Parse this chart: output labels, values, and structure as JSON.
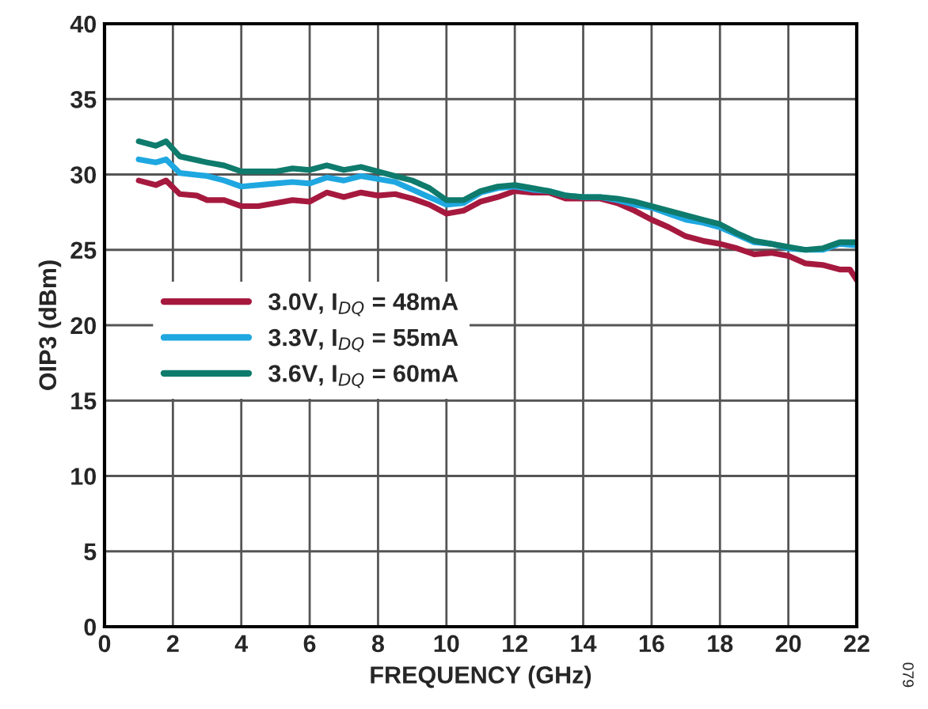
{
  "chart_data": {
    "type": "line",
    "xlabel": "FREQUENCY (GHz)",
    "ylabel": "OIP3 (dBm)",
    "xlim": [
      0,
      22
    ],
    "xticks": [
      0,
      2,
      4,
      6,
      8,
      10,
      12,
      14,
      16,
      18,
      20,
      22
    ],
    "ylim": [
      0,
      40
    ],
    "yticks": [
      0,
      5,
      10,
      15,
      20,
      25,
      30,
      35,
      40
    ],
    "grid": true,
    "legend": "center left",
    "line_style": "solid",
    "marker": "none",
    "annotations": [
      "079"
    ],
    "series": [
      {
        "name": "3.0V, I$_{DQ}$ = 48mA",
        "color": "#a6193f",
        "x": [
          1,
          1.5,
          1.8,
          2.2,
          2.7,
          3,
          3.5,
          4,
          4.5,
          5,
          5.5,
          6,
          6.5,
          7,
          7.5,
          8,
          8.5,
          9,
          9.5,
          10,
          10.5,
          11,
          11.5,
          12,
          12.5,
          13,
          13.5,
          14,
          14.5,
          15,
          15.5,
          16,
          16.5,
          17,
          17.5,
          18,
          18.5,
          19,
          19.5,
          20,
          20.5,
          21,
          21.5,
          21.8,
          22
        ],
        "values": [
          29.6,
          29.3,
          29.6,
          28.7,
          28.6,
          28.3,
          28.3,
          27.9,
          27.9,
          28.1,
          28.3,
          28.2,
          28.8,
          28.5,
          28.8,
          28.6,
          28.7,
          28.4,
          28.0,
          27.4,
          27.6,
          28.2,
          28.5,
          28.9,
          28.8,
          28.8,
          28.4,
          28.4,
          28.4,
          28.1,
          27.6,
          27.0,
          26.5,
          25.9,
          25.6,
          25.4,
          25.1,
          24.7,
          24.8,
          24.6,
          24.1,
          24.0,
          23.7,
          23.7,
          23.0
        ]
      },
      {
        "name": "3.3V, I$_{DQ}$ = 55mA",
        "color": "#1ea7e0",
        "x": [
          1,
          1.5,
          1.8,
          2.2,
          3,
          3.5,
          4,
          5,
          5.5,
          6,
          6.5,
          7,
          7.5,
          8,
          8.5,
          9,
          9.5,
          10,
          10.5,
          11,
          11.5,
          12,
          12.5,
          13,
          13.5,
          14,
          14.5,
          15,
          15.5,
          16,
          16.5,
          17,
          17.5,
          18,
          18.5,
          19,
          19.5,
          20,
          20.5,
          21,
          21.5,
          22
        ],
        "values": [
          31.0,
          30.8,
          31.0,
          30.1,
          29.9,
          29.6,
          29.2,
          29.4,
          29.5,
          29.4,
          29.8,
          29.6,
          29.9,
          29.7,
          29.5,
          29.0,
          28.5,
          28.0,
          28.1,
          28.8,
          29.1,
          29.2,
          29.0,
          28.9,
          28.6,
          28.5,
          28.5,
          28.3,
          28.0,
          27.8,
          27.4,
          27.0,
          26.8,
          26.5,
          26.0,
          25.5,
          25.4,
          25.1,
          25.0,
          25.0,
          25.4,
          25.3
        ]
      },
      {
        "name": "3.6V, I$_{DQ}$ = 60mA",
        "color": "#0e7b6c",
        "x": [
          1,
          1.5,
          1.8,
          2.2,
          3,
          3.5,
          4,
          5,
          5.5,
          6,
          6.5,
          7,
          7.5,
          8,
          8.5,
          9,
          9.5,
          10,
          10.5,
          11,
          11.5,
          12,
          12.5,
          13,
          13.5,
          14,
          14.5,
          15,
          15.5,
          16,
          16.5,
          17,
          17.5,
          18,
          18.5,
          19,
          19.5,
          20,
          20.5,
          21,
          21.5,
          22
        ],
        "values": [
          32.2,
          31.9,
          32.2,
          31.2,
          30.8,
          30.6,
          30.2,
          30.2,
          30.4,
          30.3,
          30.6,
          30.3,
          30.5,
          30.2,
          29.9,
          29.6,
          29.1,
          28.3,
          28.3,
          28.9,
          29.2,
          29.3,
          29.1,
          28.9,
          28.6,
          28.5,
          28.5,
          28.4,
          28.2,
          27.9,
          27.6,
          27.3,
          27.0,
          26.7,
          26.1,
          25.6,
          25.4,
          25.2,
          25.0,
          25.1,
          25.5,
          25.5
        ]
      }
    ]
  }
}
